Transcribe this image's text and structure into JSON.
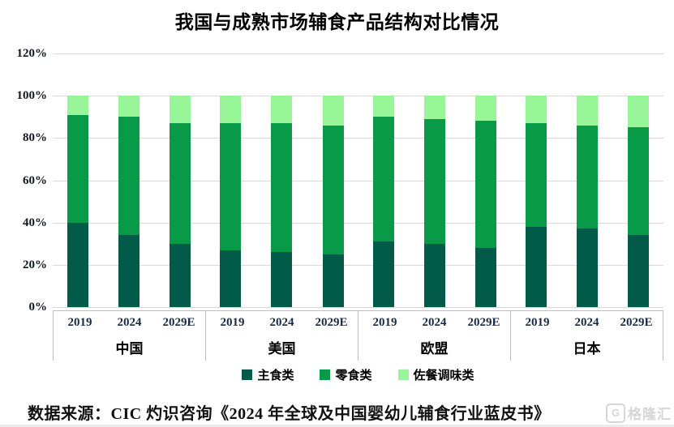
{
  "title": "我国与成熟市场辅食产品结构对比情况",
  "source": "数据来源：CIC 灼识咨询《2024 年全球及中国婴幼儿辅食行业蓝皮书》",
  "watermark": {
    "icon": "G",
    "label": "格隆汇"
  },
  "colors": {
    "staple": "#025A48",
    "snack": "#089A46",
    "seasoning": "#98F598",
    "gridline": "#D9D9D9",
    "axis_band_line": "#BFBFBF",
    "year_label": "#1B2A4A",
    "watermark_gray": "#D6D6D6"
  },
  "chart_data": {
    "type": "bar",
    "subtype": "stacked-100",
    "title": "我国与成熟市场辅食产品结构对比情况",
    "xlabel": "",
    "ylabel": "",
    "ylim": [
      0,
      120
    ],
    "grid": true,
    "legend_position": "bottom",
    "ylabel_ticks": [
      "120%",
      "100%",
      "80%",
      "60%",
      "40%",
      "20%",
      "0%"
    ],
    "groups": [
      "中国",
      "美国",
      "欧盟",
      "日本"
    ],
    "years": [
      "2019",
      "2024",
      "2029E"
    ],
    "series": [
      {
        "name": "主食类",
        "color": "#025A48",
        "values": [
          [
            40,
            34,
            30
          ],
          [
            27,
            26,
            25
          ],
          [
            31,
            30,
            28
          ],
          [
            38,
            37,
            34
          ]
        ]
      },
      {
        "name": "零食类",
        "color": "#089A46",
        "values": [
          [
            51,
            56,
            57
          ],
          [
            60,
            61,
            61
          ],
          [
            59,
            59,
            60
          ],
          [
            49,
            49,
            51
          ]
        ]
      },
      {
        "name": "佐餐调味类",
        "color": "#98F598",
        "values": [
          [
            9,
            10,
            13
          ],
          [
            13,
            13,
            14
          ],
          [
            10,
            11,
            12
          ],
          [
            13,
            14,
            15
          ]
        ]
      }
    ],
    "unit": "%"
  }
}
